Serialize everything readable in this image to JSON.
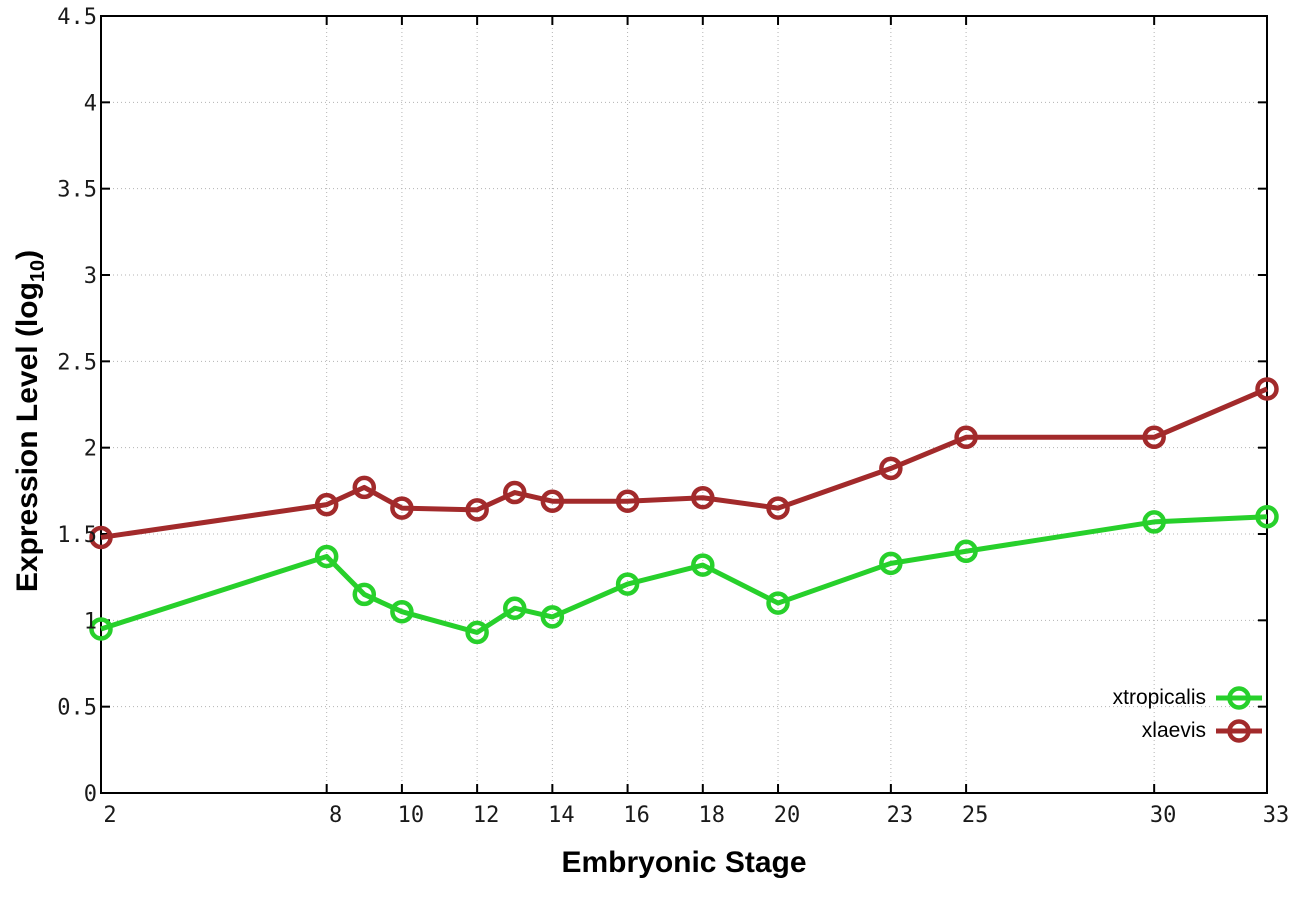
{
  "chart_data": {
    "type": "line",
    "title": "",
    "xlabel": "Embryonic Stage",
    "ylabel": "Expression Level (log10)",
    "ylabel_parts": {
      "main": "Expression Level (log",
      "sub": "10",
      "end": ")"
    },
    "x": [
      2,
      8,
      9,
      10,
      12,
      13,
      14,
      16,
      18,
      20,
      23,
      25,
      30,
      33
    ],
    "x_tick_labels": [
      "2",
      "8",
      "10",
      "12",
      "14",
      "16",
      "18",
      "20",
      "23",
      "25",
      "30",
      "33"
    ],
    "y_tick_labels": [
      "0",
      "0.5",
      "1",
      "1.5",
      "2",
      "2.5",
      "3",
      "3.5",
      "4",
      "4.5"
    ],
    "xlim": [
      2,
      33
    ],
    "ylim": [
      0,
      4.5
    ],
    "grid": true,
    "grid_style": "dotted",
    "legend_position": "inside-bottom-right",
    "background": "#ffffff",
    "axis_color": "#000000",
    "grid_color": "#b3b3b3",
    "series": [
      {
        "name": "xtropicalis",
        "color": "#27d02b",
        "values": [
          0.95,
          1.37,
          1.15,
          1.05,
          0.93,
          1.07,
          1.02,
          1.21,
          1.32,
          1.1,
          1.33,
          1.4,
          1.57,
          1.6
        ]
      },
      {
        "name": "xlaevis",
        "color": "#a22a2b",
        "values": [
          1.48,
          1.67,
          1.77,
          1.65,
          1.64,
          1.74,
          1.69,
          1.69,
          1.71,
          1.65,
          1.88,
          2.06,
          2.06,
          2.34
        ]
      }
    ]
  }
}
